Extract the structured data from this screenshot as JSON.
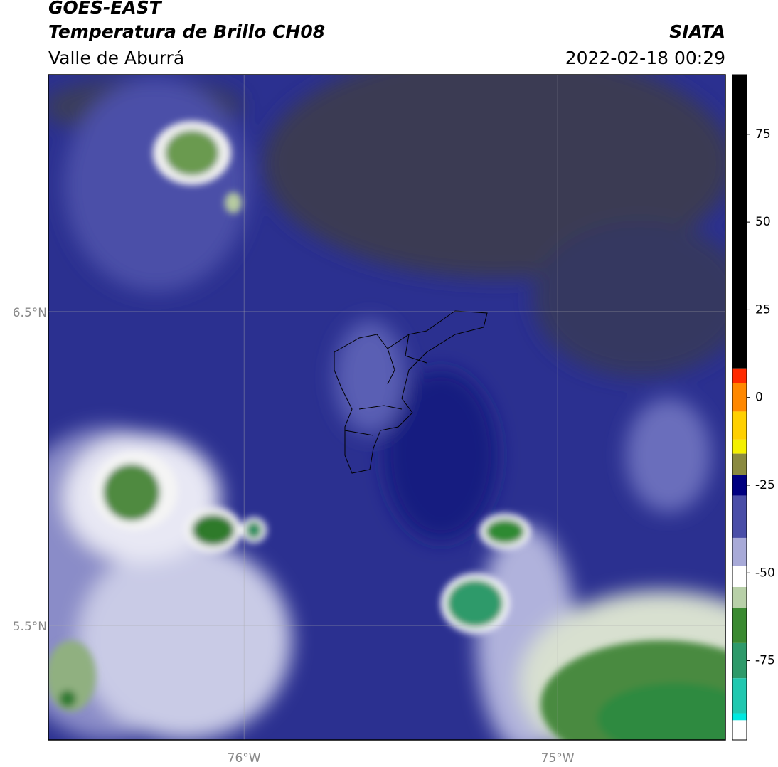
{
  "header": {
    "title": "GOES-EAST",
    "subtitle": "Temperatura de Brillo CH08",
    "region": "Valle de Aburrá",
    "source": "SIATA",
    "datetime": "2022-02-18 00:29"
  },
  "map": {
    "latlim": [
      5.135,
      7.255
    ],
    "lonlim": [
      -76.624,
      -74.465
    ],
    "latticks": [
      {
        "value": 6.5,
        "label": "6.5°N"
      },
      {
        "value": 5.5,
        "label": "5.5°N"
      }
    ],
    "lonticks": [
      {
        "value": -76,
        "label": "76°W"
      },
      {
        "value": -75,
        "label": "75°W"
      }
    ]
  },
  "colorbar": {
    "lim": [
      -97.6,
      92
    ],
    "ticks": [
      75,
      50,
      25,
      0,
      -25,
      -50,
      -75
    ],
    "bounds": [
      92,
      8.3,
      4,
      -4,
      -12,
      -16,
      -22,
      -28,
      -40,
      -48,
      -54,
      -60,
      -70,
      -80,
      -90,
      -92,
      -97.6
    ],
    "colors": [
      "#000000",
      "#ff2a00",
      "#ff8800",
      "#ffd000",
      "#f4f000",
      "#8a8a40",
      "#000080",
      "#4a4ea8",
      "#a8aad8",
      "#ffffff",
      "#b8d0a8",
      "#3a8a30",
      "#2e9a6a",
      "#20c8b0",
      "#00e8e0",
      "#ffffff"
    ]
  }
}
